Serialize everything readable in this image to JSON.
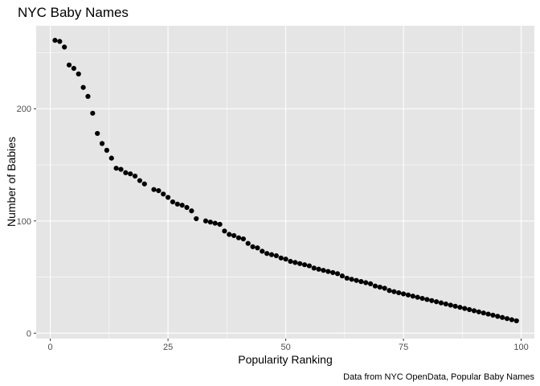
{
  "chart_data": {
    "type": "scatter",
    "title": "NYC Baby Names",
    "xlabel": "Popularity Ranking",
    "ylabel": "Number of Babies",
    "caption": "Data from NYC OpenData, Popular Baby Names",
    "xlim": [
      -3,
      102.8
    ],
    "ylim": [
      -4.8,
      274
    ],
    "x_ticks": [
      0,
      25,
      50,
      75,
      100
    ],
    "y_ticks": [
      0,
      100,
      200
    ],
    "x_tick_labels": [
      "0",
      "25",
      "50",
      "75",
      "100"
    ],
    "y_tick_labels": [
      "0",
      "100",
      "200"
    ],
    "grid": true,
    "colors": {
      "panel": "#e5e5e5",
      "grid": "#ffffff",
      "point": "#000000"
    },
    "points": [
      [
        1,
        261
      ],
      [
        2,
        260
      ],
      [
        3,
        255
      ],
      [
        4,
        239
      ],
      [
        5,
        236
      ],
      [
        6,
        231
      ],
      [
        7,
        219
      ],
      [
        8,
        211
      ],
      [
        9,
        196
      ],
      [
        10,
        178
      ],
      [
        11,
        169
      ],
      [
        12,
        163
      ],
      [
        13,
        156
      ],
      [
        14,
        147
      ],
      [
        15,
        146
      ],
      [
        16,
        143
      ],
      [
        17,
        142
      ],
      [
        18,
        140
      ],
      [
        19,
        136
      ],
      [
        20,
        133
      ],
      [
        22,
        128
      ],
      [
        23,
        127
      ],
      [
        24,
        124
      ],
      [
        25,
        121
      ],
      [
        26,
        117
      ],
      [
        27,
        115
      ],
      [
        28,
        114
      ],
      [
        29,
        112
      ],
      [
        30,
        109
      ],
      [
        31,
        102
      ],
      [
        33,
        100
      ],
      [
        34,
        99
      ],
      [
        35,
        98
      ],
      [
        36,
        97
      ],
      [
        37,
        91
      ],
      [
        38,
        88
      ],
      [
        39,
        87
      ],
      [
        40,
        85
      ],
      [
        41,
        84
      ],
      [
        42,
        80
      ],
      [
        43,
        77
      ],
      [
        44,
        76
      ],
      [
        45,
        73
      ],
      [
        46,
        71
      ],
      [
        47,
        70
      ],
      [
        48,
        69
      ],
      [
        49,
        67
      ],
      [
        50,
        66
      ],
      [
        51,
        64
      ],
      [
        52,
        63
      ],
      [
        53,
        62
      ],
      [
        54,
        61
      ],
      [
        55,
        60
      ],
      [
        56,
        58
      ],
      [
        57,
        57
      ],
      [
        58,
        56
      ],
      [
        59,
        55
      ],
      [
        60,
        54
      ],
      [
        61,
        53
      ],
      [
        62,
        51
      ],
      [
        63,
        49
      ],
      [
        64,
        48
      ],
      [
        65,
        47
      ],
      [
        66,
        46
      ],
      [
        67,
        45
      ],
      [
        68,
        44
      ],
      [
        69,
        42
      ],
      [
        70,
        41
      ],
      [
        71,
        40
      ],
      [
        72,
        38
      ],
      [
        73,
        37
      ],
      [
        74,
        36
      ],
      [
        75,
        35
      ],
      [
        76,
        34
      ],
      [
        77,
        33
      ],
      [
        78,
        32
      ],
      [
        79,
        31
      ],
      [
        80,
        30
      ],
      [
        81,
        29
      ],
      [
        82,
        28
      ],
      [
        83,
        27
      ],
      [
        84,
        26
      ],
      [
        85,
        25
      ],
      [
        86,
        24
      ],
      [
        87,
        23
      ],
      [
        88,
        22
      ],
      [
        89,
        21
      ],
      [
        90,
        20
      ],
      [
        91,
        19
      ],
      [
        92,
        18
      ],
      [
        93,
        17
      ],
      [
        94,
        16
      ],
      [
        95,
        15
      ],
      [
        96,
        14
      ],
      [
        97,
        13
      ],
      [
        98,
        12
      ],
      [
        99,
        11
      ]
    ]
  }
}
